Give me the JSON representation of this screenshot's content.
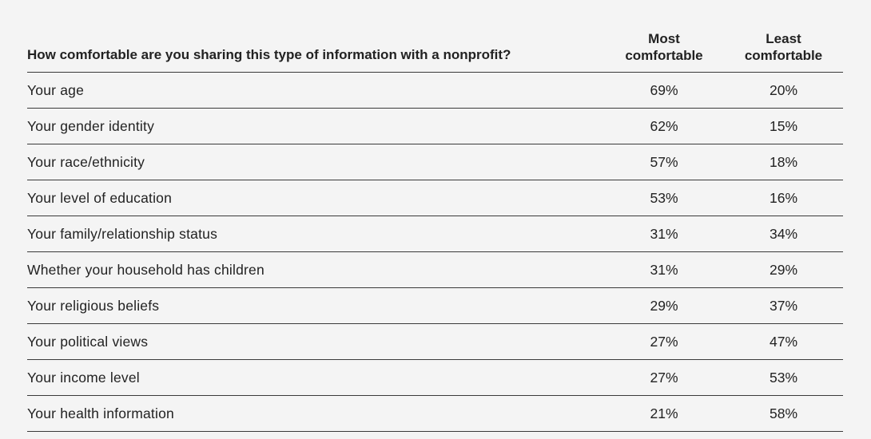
{
  "table": {
    "question_header": "How comfortable are you sharing this type of information with a nonprofit?",
    "most_header": [
      "Most",
      "comfortable"
    ],
    "least_header": [
      "Least",
      "comfortable"
    ],
    "rows": [
      {
        "label": "Your age",
        "most": "69%",
        "least": "20%"
      },
      {
        "label": "Your gender identity",
        "most": "62%",
        "least": "15%"
      },
      {
        "label": "Your race/ethnicity",
        "most": "57%",
        "least": "18%"
      },
      {
        "label": "Your level of education",
        "most": "53%",
        "least": "16%"
      },
      {
        "label": "Your family/relationship status",
        "most": "31%",
        "least": "34%"
      },
      {
        "label": "Whether your household has children",
        "most": "31%",
        "least": "29%"
      },
      {
        "label": "Your religious beliefs",
        "most": "29%",
        "least": "37%"
      },
      {
        "label": "Your political views",
        "most": "27%",
        "least": "47%"
      },
      {
        "label": "Your income level",
        "most": "27%",
        "least": "53%"
      },
      {
        "label": "Your health information",
        "most": "21%",
        "least": "58%"
      }
    ]
  }
}
